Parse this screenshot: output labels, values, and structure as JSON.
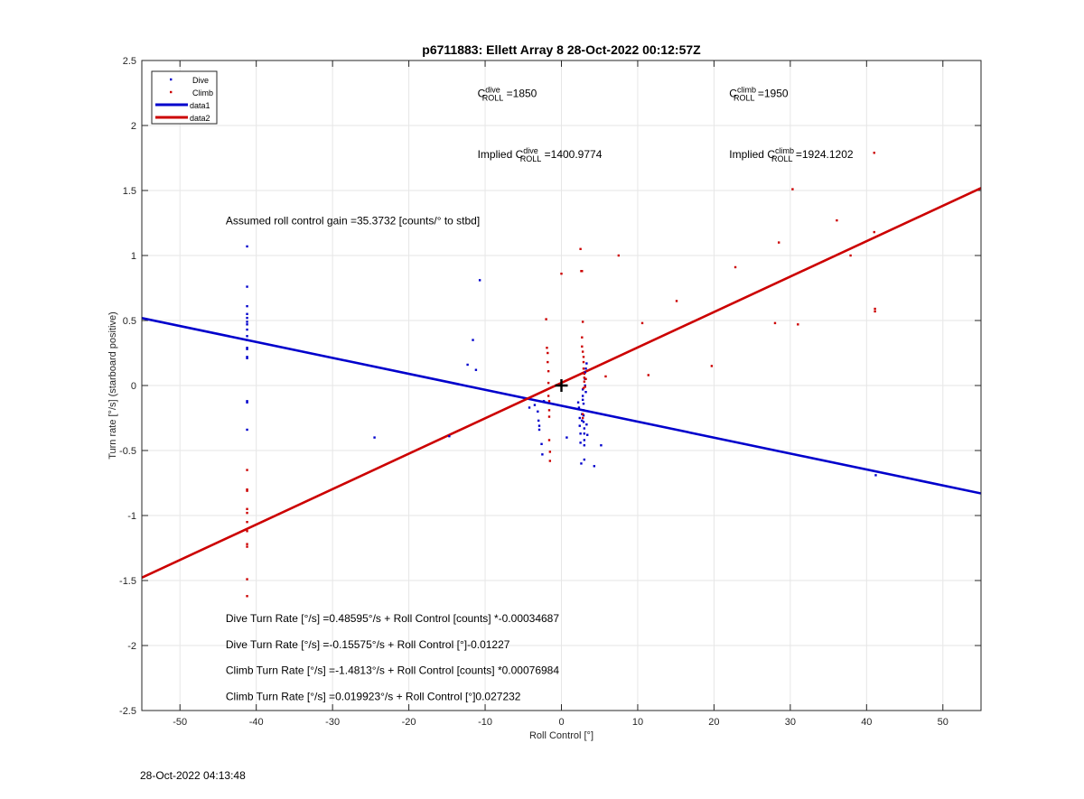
{
  "chart_data": {
    "type": "scatter",
    "title": "p6711883: Ellett Array 8 28-Oct-2022 00:12:57Z",
    "xlabel": "Roll Control [°]",
    "ylabel": "Turn rate [°/s] (starboard positive)",
    "xlim": [
      -55,
      55
    ],
    "ylim": [
      -2.5,
      2.5
    ],
    "xticks": [
      -50,
      -40,
      -30,
      -20,
      -10,
      0,
      10,
      20,
      30,
      40,
      50
    ],
    "yticks": [
      -2.5,
      -2,
      -1.5,
      -1,
      -0.5,
      0,
      0.5,
      1,
      1.5,
      2,
      2.5
    ],
    "xtick_labels": [
      "-50",
      "-40",
      "-30",
      "-20",
      "-10",
      "0",
      "10",
      "20",
      "30",
      "40",
      "50"
    ],
    "ytick_labels": [
      "-2.5",
      "-2",
      "-1.5",
      "-1",
      "-0.5",
      "0",
      "0.5",
      "1",
      "1.5",
      "2",
      "2.5"
    ],
    "grid": true,
    "legend_position": "top-left",
    "legend": [
      "Dive",
      "Climb",
      "data1",
      "data2"
    ],
    "colors": {
      "dive": "#0000cc",
      "climb": "#cc0000",
      "axis": "#262626",
      "grid": "#e6e6e6"
    },
    "series": [
      {
        "name": "Dive",
        "style": "points",
        "points": [
          [
            -41.2,
            1.07
          ],
          [
            -41.2,
            0.76
          ],
          [
            -41.2,
            0.61
          ],
          [
            -41.2,
            0.55
          ],
          [
            -41.2,
            0.52
          ],
          [
            -41.2,
            0.49
          ],
          [
            -41.2,
            0.47
          ],
          [
            -41.2,
            0.43
          ],
          [
            -41.2,
            0.38
          ],
          [
            -41.2,
            0.35
          ],
          [
            -41.2,
            0.29
          ],
          [
            -41.2,
            0.28
          ],
          [
            -41.2,
            0.22
          ],
          [
            -41.2,
            0.21
          ],
          [
            -41.2,
            -0.12
          ],
          [
            -41.2,
            -0.13
          ],
          [
            -41.2,
            -0.34
          ],
          [
            -24.5,
            -0.4
          ],
          [
            -14.7,
            -0.39
          ],
          [
            -12.3,
            0.16
          ],
          [
            -11.6,
            0.35
          ],
          [
            -11.2,
            0.12
          ],
          [
            -10.7,
            0.81
          ],
          [
            -4.2,
            -0.17
          ],
          [
            -3.5,
            -0.15
          ],
          [
            -3.1,
            -0.2
          ],
          [
            -3.0,
            -0.27
          ],
          [
            -2.9,
            -0.31
          ],
          [
            -2.9,
            -0.34
          ],
          [
            -2.6,
            -0.45
          ],
          [
            -2.5,
            -0.53
          ],
          [
            -2.3,
            -0.12
          ],
          [
            0.7,
            -0.4
          ],
          [
            2.2,
            -0.13
          ],
          [
            2.3,
            -0.17
          ],
          [
            2.4,
            -0.25
          ],
          [
            2.4,
            -0.31
          ],
          [
            2.5,
            -0.37
          ],
          [
            2.5,
            -0.44
          ],
          [
            2.6,
            -0.6
          ],
          [
            2.7,
            -0.22
          ],
          [
            2.7,
            -0.27
          ],
          [
            2.8,
            -0.03
          ],
          [
            2.8,
            -0.08
          ],
          [
            2.8,
            -0.11
          ],
          [
            2.9,
            -0.14
          ],
          [
            2.9,
            -0.19
          ],
          [
            2.9,
            -0.23
          ],
          [
            2.9,
            -0.28
          ],
          [
            3.0,
            -0.33
          ],
          [
            3.0,
            -0.37
          ],
          [
            3.0,
            -0.42
          ],
          [
            3.0,
            -0.46
          ],
          [
            3.0,
            -0.57
          ],
          [
            3.1,
            0.1
          ],
          [
            3.1,
            0.05
          ],
          [
            3.1,
            0.0
          ],
          [
            3.2,
            0.13
          ],
          [
            3.2,
            -0.05
          ],
          [
            3.3,
            0.17
          ],
          [
            3.3,
            -0.3
          ],
          [
            3.4,
            -0.38
          ],
          [
            4.3,
            -0.62
          ],
          [
            5.2,
            -0.46
          ],
          [
            41.2,
            -0.69
          ]
        ]
      },
      {
        "name": "Climb",
        "style": "points",
        "points": [
          [
            -41.2,
            -0.65
          ],
          [
            -41.2,
            -0.8
          ],
          [
            -41.2,
            -0.81
          ],
          [
            -41.2,
            -0.95
          ],
          [
            -41.2,
            -0.98
          ],
          [
            -41.2,
            -1.05
          ],
          [
            -41.2,
            -1.12
          ],
          [
            -41.2,
            -1.22
          ],
          [
            -41.2,
            -1.24
          ],
          [
            -41.2,
            -1.49
          ],
          [
            -41.2,
            -1.62
          ],
          [
            -2.0,
            0.51
          ],
          [
            -1.9,
            0.29
          ],
          [
            -1.8,
            0.25
          ],
          [
            -1.8,
            0.18
          ],
          [
            -1.7,
            0.11
          ],
          [
            -1.7,
            0.02
          ],
          [
            -1.7,
            -0.08
          ],
          [
            -1.6,
            -0.12
          ],
          [
            -1.6,
            -0.19
          ],
          [
            -1.6,
            -0.24
          ],
          [
            -1.6,
            -0.42
          ],
          [
            -1.5,
            -0.51
          ],
          [
            -1.5,
            -0.58
          ],
          [
            0.0,
            0.86
          ],
          [
            2.5,
            1.05
          ],
          [
            2.6,
            0.88
          ],
          [
            2.7,
            0.88
          ],
          [
            2.8,
            0.49
          ],
          [
            2.7,
            0.37
          ],
          [
            2.7,
            0.3
          ],
          [
            2.8,
            0.26
          ],
          [
            2.9,
            0.22
          ],
          [
            2.9,
            0.18
          ],
          [
            2.9,
            0.13
          ],
          [
            3.0,
            0.09
          ],
          [
            3.0,
            0.06
          ],
          [
            3.0,
            0.03
          ],
          [
            3.1,
            -0.01
          ],
          [
            2.9,
            -0.02
          ],
          [
            3.2,
            0.05
          ],
          [
            2.8,
            -0.22
          ],
          [
            2.8,
            -0.25
          ],
          [
            5.8,
            0.07
          ],
          [
            7.5,
            1.0
          ],
          [
            10.6,
            0.48
          ],
          [
            11.4,
            0.08
          ],
          [
            15.1,
            0.65
          ],
          [
            19.7,
            0.15
          ],
          [
            22.8,
            0.91
          ],
          [
            28.0,
            0.48
          ],
          [
            28.5,
            1.1
          ],
          [
            30.3,
            1.51
          ],
          [
            31.0,
            0.47
          ],
          [
            36.1,
            1.27
          ],
          [
            37.9,
            1.0
          ],
          [
            41.0,
            1.79
          ],
          [
            41.0,
            1.18
          ],
          [
            41.1,
            0.59
          ],
          [
            41.1,
            0.57
          ]
        ]
      },
      {
        "name": "data1",
        "style": "line",
        "x": [
          -55,
          55
        ],
        "y": [
          0.519,
          -0.83
        ]
      },
      {
        "name": "data2",
        "style": "line",
        "x": [
          -55,
          55
        ],
        "y": [
          -1.478,
          1.519
        ]
      }
    ],
    "annotations": [
      {
        "id": "c_dive",
        "x": -11,
        "y": 2.22,
        "parts": [
          "C",
          "dive",
          "ROLL",
          " =1850"
        ]
      },
      {
        "id": "c_climb",
        "x": 22,
        "y": 2.22,
        "parts": [
          "C",
          "climb",
          "ROLL",
          " =1950"
        ]
      },
      {
        "id": "implied_dive",
        "x": -11,
        "y": 1.75,
        "parts": [
          "Implied C",
          "dive",
          "ROLL",
          " =1400.9774"
        ]
      },
      {
        "id": "implied_climb",
        "x": 22,
        "y": 1.75,
        "parts": [
          "Implied C",
          "climb",
          "ROLL",
          " =1924.1202"
        ]
      },
      {
        "id": "gain",
        "x": -44,
        "y": 1.24,
        "text": "Assumed roll control gain =35.3732 [counts/° to stbd]"
      },
      {
        "id": "eq1",
        "x": -44,
        "y": -1.82,
        "text": "Dive Turn Rate [°/s] =0.48595°/s + Roll Control [counts] *-0.00034687"
      },
      {
        "id": "eq2",
        "x": -44,
        "y": -2.02,
        "text": "Dive Turn Rate [°/s] =-0.15575°/s + Roll Control [°]-0.01227"
      },
      {
        "id": "eq3",
        "x": -44,
        "y": -2.22,
        "text": "Climb Turn Rate [°/s] =-1.4813°/s + Roll Control [counts] *0.00076984"
      },
      {
        "id": "eq4",
        "x": -44,
        "y": -2.42,
        "text": "Climb Turn Rate [°/s] =0.019923°/s + Roll Control [°]0.027232"
      }
    ],
    "marker": {
      "type": "plus",
      "x": 0,
      "y": 0
    }
  },
  "footer": {
    "timestamp": "28-Oct-2022 04:13:48"
  }
}
